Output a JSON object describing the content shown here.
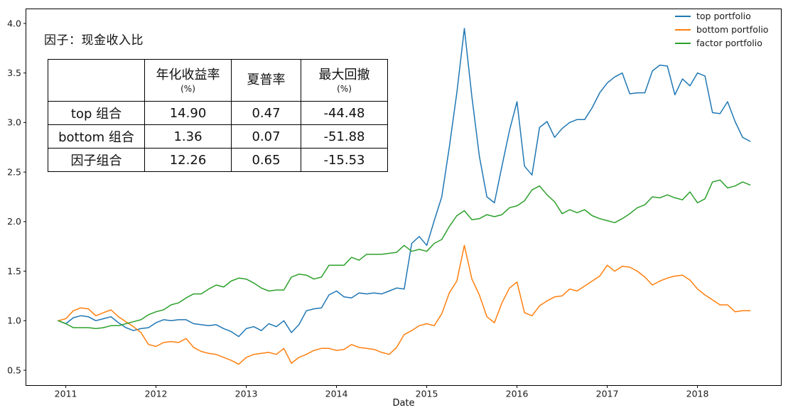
{
  "figure": {
    "title": "因子：现金收入比",
    "xlabel": "Date"
  },
  "stats_table": {
    "headers": [
      {
        "title": "",
        "unit": ""
      },
      {
        "title": "年化收益率",
        "unit": "(%)"
      },
      {
        "title": "夏普率",
        "unit": ""
      },
      {
        "title": "最大回撤",
        "unit": "(%)"
      }
    ],
    "rows": [
      {
        "label": "top 组合",
        "values": [
          "14.90",
          "0.47",
          "-44.48"
        ]
      },
      {
        "label": "bottom 组合",
        "values": [
          "1.36",
          "0.07",
          "-51.88"
        ]
      },
      {
        "label": "因子组合",
        "values": [
          "12.26",
          "0.65",
          "-15.53"
        ]
      }
    ]
  },
  "legend": [
    {
      "label": "top portfolio",
      "color": "#1f77b4"
    },
    {
      "label": "bottom portfolio",
      "color": "#ff7f0e"
    },
    {
      "label": "factor portfolio",
      "color": "#2ca02c"
    }
  ],
  "chart_data": {
    "type": "line",
    "title": "因子：现金收入比",
    "xlabel": "Date",
    "x_start": "2010-12",
    "x_freq": "monthly",
    "x_tick_labels": [
      "2011",
      "2012",
      "2013",
      "2014",
      "2015",
      "2016",
      "2017",
      "2018"
    ],
    "y_ticks": [
      0.5,
      1.0,
      1.5,
      2.0,
      2.5,
      3.0,
      3.5,
      4.0
    ],
    "ylim": [
      0.35,
      4.15
    ],
    "grid": false,
    "legend_position": "upper right",
    "series": [
      {
        "name": "top portfolio",
        "color": "#1f77b4",
        "values": [
          1.0,
          0.97,
          1.03,
          1.05,
          1.04,
          1.0,
          1.02,
          1.04,
          0.98,
          0.93,
          0.9,
          0.92,
          0.93,
          0.98,
          1.01,
          1.0,
          1.01,
          1.01,
          0.97,
          0.96,
          0.95,
          0.96,
          0.92,
          0.89,
          0.84,
          0.92,
          0.94,
          0.9,
          0.97,
          0.94,
          1.0,
          0.88,
          0.96,
          1.1,
          1.12,
          1.13,
          1.26,
          1.3,
          1.24,
          1.23,
          1.28,
          1.27,
          1.28,
          1.27,
          1.3,
          1.33,
          1.32,
          1.78,
          1.85,
          1.76,
          2.01,
          2.25,
          2.75,
          3.3,
          3.95,
          3.26,
          2.66,
          2.25,
          2.19,
          2.56,
          2.92,
          3.21,
          2.56,
          2.47,
          2.95,
          3.01,
          2.85,
          2.94,
          3.0,
          3.03,
          3.03,
          3.15,
          3.3,
          3.4,
          3.46,
          3.5,
          3.29,
          3.3,
          3.3,
          3.52,
          3.58,
          3.57,
          3.28,
          3.44,
          3.37,
          3.5,
          3.47,
          3.1,
          3.09,
          3.21,
          3.01,
          2.85,
          2.81
        ]
      },
      {
        "name": "bottom portfolio",
        "color": "#ff7f0e",
        "values": [
          1.0,
          1.02,
          1.1,
          1.13,
          1.12,
          1.05,
          1.08,
          1.11,
          1.04,
          0.99,
          0.94,
          0.88,
          0.76,
          0.74,
          0.78,
          0.79,
          0.78,
          0.82,
          0.73,
          0.69,
          0.67,
          0.66,
          0.63,
          0.6,
          0.56,
          0.63,
          0.66,
          0.67,
          0.68,
          0.66,
          0.72,
          0.57,
          0.63,
          0.66,
          0.7,
          0.72,
          0.72,
          0.7,
          0.71,
          0.76,
          0.73,
          0.72,
          0.71,
          0.68,
          0.66,
          0.73,
          0.86,
          0.9,
          0.95,
          0.97,
          0.95,
          1.07,
          1.28,
          1.4,
          1.76,
          1.42,
          1.26,
          1.04,
          0.98,
          1.18,
          1.33,
          1.39,
          1.08,
          1.05,
          1.15,
          1.2,
          1.24,
          1.25,
          1.32,
          1.3,
          1.35,
          1.4,
          1.45,
          1.56,
          1.5,
          1.55,
          1.54,
          1.5,
          1.44,
          1.36,
          1.4,
          1.43,
          1.45,
          1.46,
          1.41,
          1.32,
          1.26,
          1.21,
          1.16,
          1.16,
          1.09,
          1.1,
          1.1
        ]
      },
      {
        "name": "factor portfolio",
        "color": "#2ca02c",
        "values": [
          1.0,
          0.97,
          0.93,
          0.93,
          0.93,
          0.92,
          0.93,
          0.95,
          0.95,
          0.97,
          0.99,
          1.01,
          1.06,
          1.09,
          1.11,
          1.16,
          1.18,
          1.23,
          1.27,
          1.27,
          1.32,
          1.36,
          1.34,
          1.4,
          1.43,
          1.42,
          1.38,
          1.33,
          1.3,
          1.31,
          1.31,
          1.44,
          1.47,
          1.46,
          1.42,
          1.44,
          1.56,
          1.56,
          1.56,
          1.64,
          1.61,
          1.67,
          1.67,
          1.67,
          1.68,
          1.69,
          1.76,
          1.7,
          1.72,
          1.7,
          1.78,
          1.82,
          1.95,
          2.06,
          2.11,
          2.02,
          2.03,
          2.07,
          2.05,
          2.07,
          2.14,
          2.16,
          2.21,
          2.32,
          2.36,
          2.27,
          2.2,
          2.08,
          2.12,
          2.09,
          2.12,
          2.06,
          2.03,
          2.01,
          1.99,
          2.03,
          2.08,
          2.14,
          2.17,
          2.25,
          2.24,
          2.27,
          2.24,
          2.22,
          2.3,
          2.19,
          2.23,
          2.4,
          2.42,
          2.34,
          2.36,
          2.4,
          2.37
        ]
      }
    ]
  }
}
